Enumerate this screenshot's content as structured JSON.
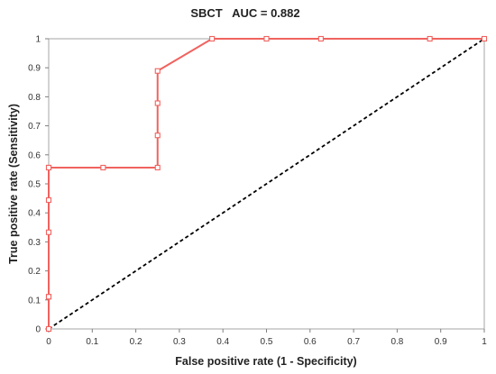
{
  "chart_data": {
    "type": "line",
    "title": "SBCT   AUC = 0.882",
    "xlabel": "False positive rate (1 - Specificity)",
    "ylabel": "True positive rate (Sensitivity)",
    "xlim": [
      0,
      1
    ],
    "ylim": [
      0,
      1
    ],
    "xticks": [
      "0",
      "0.1",
      "0.2",
      "0.3",
      "0.4",
      "0.5",
      "0.6",
      "0.7",
      "0.8",
      "0.9",
      "1"
    ],
    "yticks": [
      "0",
      "0.1",
      "0.2",
      "0.3",
      "0.4",
      "0.5",
      "0.6",
      "0.7",
      "0.8",
      "0.9",
      "1"
    ],
    "grid": false,
    "series": [
      {
        "style": "solid-with-square-markers",
        "color": "#f0635f",
        "x": [
          0,
          0,
          0,
          0,
          0,
          0,
          0,
          0.125,
          0.25,
          0.25,
          0.25,
          0.25,
          0.375,
          0.5,
          0.625,
          0.875,
          1
        ],
        "y": [
          0,
          0.111,
          0.111,
          0.333,
          0.444,
          0.556,
          0.556,
          0.556,
          0.556,
          0.667,
          0.778,
          0.889,
          1,
          1,
          1,
          1,
          1
        ]
      },
      {
        "style": "dashed",
        "color": "#000000",
        "x": [
          0,
          1
        ],
        "y": [
          0,
          1
        ]
      }
    ]
  }
}
